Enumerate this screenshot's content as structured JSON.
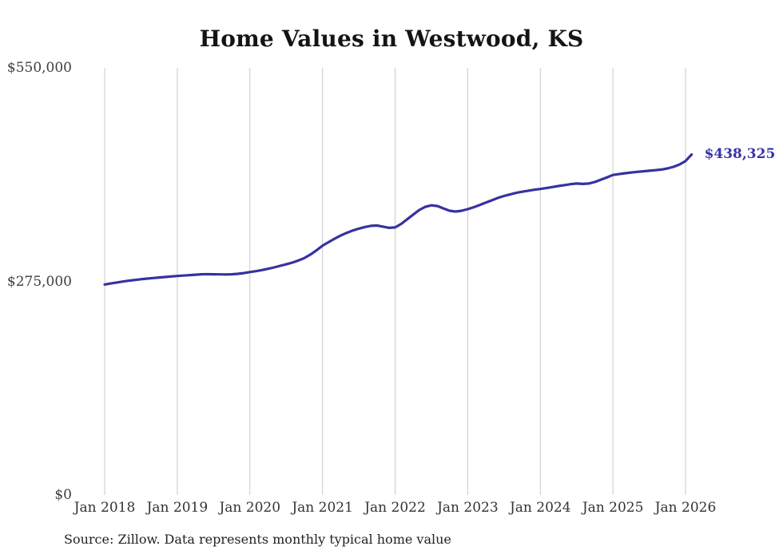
{
  "page": {
    "title": "Home Values in Westwood, KS",
    "source_note": "Source: Zillow. Data represents monthly typical home value"
  },
  "colors": {
    "line": "#37329f",
    "end_label": "#3733ab",
    "grid": "#c9c9c9",
    "axis_text": "#3d3d3d",
    "title_text": "#141414"
  },
  "chart_data": {
    "type": "line",
    "title": "Home Values in Westwood, KS",
    "xlabel": "",
    "ylabel": "",
    "ylim": [
      0,
      550000
    ],
    "grid": "vertical-lines-at-january-of-each-year",
    "legend": "none",
    "y_ticks": [
      {
        "value": 0,
        "label": "$0"
      },
      {
        "value": 275000,
        "label": "$275,000"
      },
      {
        "value": 550000,
        "label": "$550,000"
      }
    ],
    "x_tick_labels": [
      "Jan 2018",
      "Jan 2019",
      "Jan 2020",
      "Jan 2021",
      "Jan 2022",
      "Jan 2023",
      "Jan 2024",
      "Jan 2025",
      "Jan 2026"
    ],
    "end_annotation": {
      "label": "$438,325",
      "value": 438325
    },
    "series": [
      {
        "name": "Monthly typical home value (USD)",
        "start_month": "Jan 2018",
        "frequency": "monthly",
        "values": [
          271000,
          272300,
          273600,
          274800,
          275900,
          276900,
          277800,
          278600,
          279300,
          280000,
          280700,
          281400,
          282000,
          282500,
          283000,
          283600,
          284100,
          284300,
          284200,
          284000,
          283900,
          284200,
          284800,
          285700,
          287000,
          288200,
          289600,
          291200,
          293000,
          295000,
          297000,
          299200,
          301800,
          305000,
          309500,
          315000,
          321000,
          325500,
          330000,
          334000,
          337500,
          340500,
          343000,
          345000,
          346500,
          347000,
          345500,
          344000,
          344500,
          349000,
          355000,
          361000,
          367000,
          371000,
          373000,
          372000,
          369000,
          366000,
          365000,
          366000,
          368000,
          370500,
          373500,
          376500,
          379500,
          382500,
          385000,
          387000,
          389000,
          390500,
          391800,
          393000,
          394000,
          395200,
          396500,
          397800,
          399000,
          400200,
          401000,
          400500,
          401000,
          403000,
          406000,
          409000,
          412000,
          413200,
          414300,
          415200,
          416000,
          416800,
          417500,
          418200,
          419000,
          420500,
          422500,
          425500,
          430000,
          438325
        ]
      }
    ]
  }
}
